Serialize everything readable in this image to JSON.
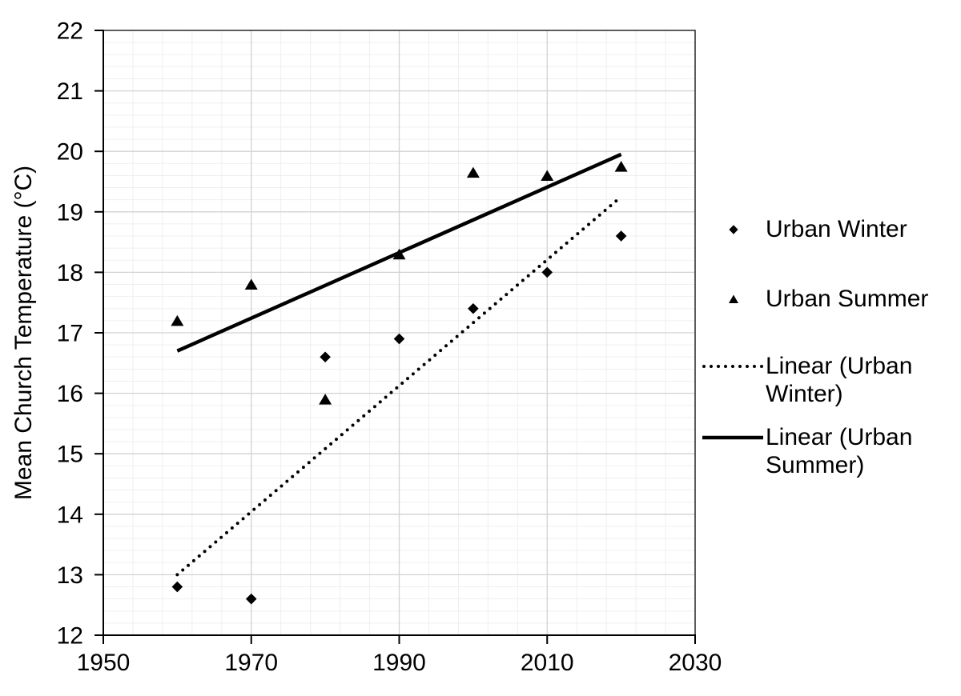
{
  "chart_data": {
    "type": "scatter",
    "title": "",
    "xlabel": "",
    "ylabel": "Mean Church Temperature (°C)",
    "x": [
      1960,
      1970,
      1980,
      1990,
      2000,
      2010,
      2020
    ],
    "series": [
      {
        "name": "Urban Winter",
        "marker": "diamond",
        "values": [
          12.8,
          12.6,
          16.6,
          16.9,
          17.4,
          18.0,
          18.6
        ]
      },
      {
        "name": "Urban Summer",
        "marker": "triangle",
        "values": [
          17.2,
          17.8,
          15.9,
          18.3,
          19.65,
          19.6,
          19.75
        ]
      }
    ],
    "trendlines": [
      {
        "name": "Linear (Urban Winter)",
        "style": "dotted",
        "x1": 1960,
        "y1": 13.0,
        "x2": 2020,
        "y2": 19.25
      },
      {
        "name": "Linear (Urban Summer)",
        "style": "solid",
        "x1": 1960,
        "y1": 16.7,
        "x2": 2020,
        "y2": 19.95
      }
    ],
    "xlim": [
      1950,
      2030
    ],
    "ylim": [
      12,
      22
    ],
    "x_ticks": [
      1950,
      1970,
      1990,
      2010,
      2030
    ],
    "y_ticks": [
      12,
      13,
      14,
      15,
      16,
      17,
      18,
      19,
      20,
      21,
      22
    ],
    "x_minor_step": 4,
    "y_minor_step": 0.2,
    "grid": true,
    "legend_position": "right",
    "colors": {
      "foreground": "#000000",
      "plot_border": "#262626",
      "gridline_major": "#d2d2d2",
      "gridline_minor": "#efefef",
      "background": "#ffffff"
    }
  },
  "legend": {
    "items": [
      {
        "label": "Urban Winter",
        "marker": "diamond"
      },
      {
        "label": "Urban Summer",
        "marker": "triangle"
      },
      {
        "label": "Linear (Urban Winter)",
        "marker": "dotted-line"
      },
      {
        "label": "Linear (Urban Summer)",
        "marker": "solid-line"
      }
    ]
  }
}
